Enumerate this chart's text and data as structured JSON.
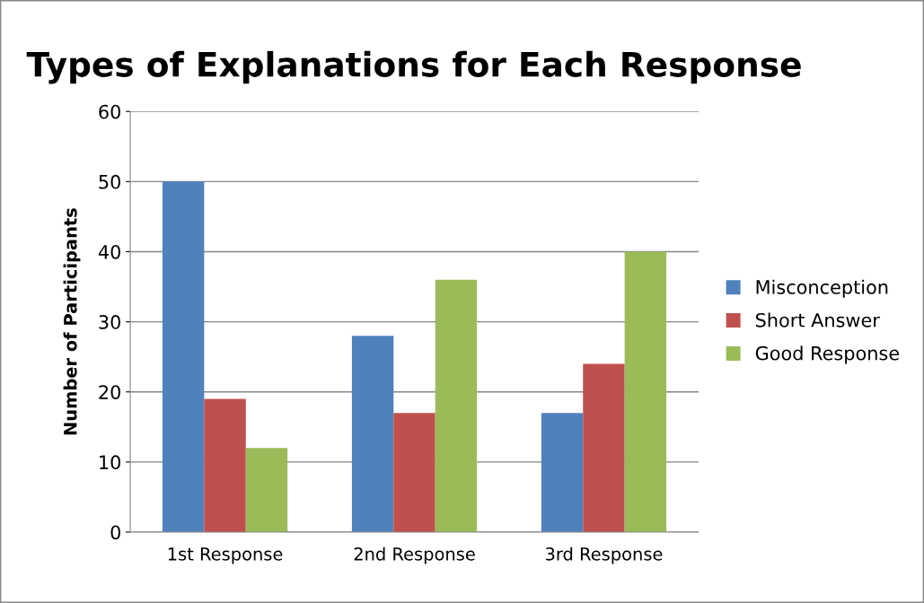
{
  "chart_data": {
    "type": "bar",
    "title": "Types of Explanations for Each Response",
    "ylabel": "Number of Participants",
    "categories": [
      "1st Response",
      "2nd Response",
      "3rd Response"
    ],
    "series": [
      {
        "name": "Misconception",
        "color": "#4f81bd",
        "values": [
          50,
          28,
          17
        ]
      },
      {
        "name": "Short Answer",
        "color": "#c0504d",
        "values": [
          19,
          17,
          24
        ]
      },
      {
        "name": "Good Response",
        "color": "#9bbb59",
        "values": [
          12,
          36,
          40
        ]
      }
    ],
    "ylim": [
      0,
      60
    ],
    "yticks": [
      0,
      10,
      20,
      30,
      40,
      50,
      60
    ],
    "grid": "y",
    "legend": "right"
  }
}
